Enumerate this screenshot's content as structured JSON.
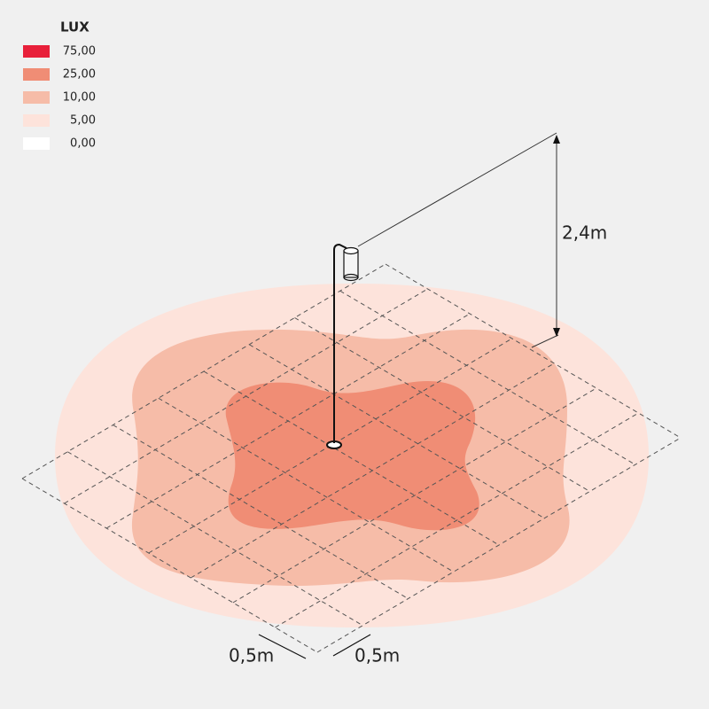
{
  "legend": {
    "title": "LUX",
    "items": [
      {
        "label": "75,00",
        "color": "#e8203a"
      },
      {
        "label": "25,00",
        "color": "#f08d75"
      },
      {
        "label": "10,00",
        "color": "#f6bca8"
      },
      {
        "label": "5,00",
        "color": "#fde3db"
      },
      {
        "label": "0,00",
        "color": "#ffffff"
      }
    ]
  },
  "dimensions": {
    "height": "2,4m",
    "grid_a": "0,5m",
    "grid_b": "0,5m"
  }
}
